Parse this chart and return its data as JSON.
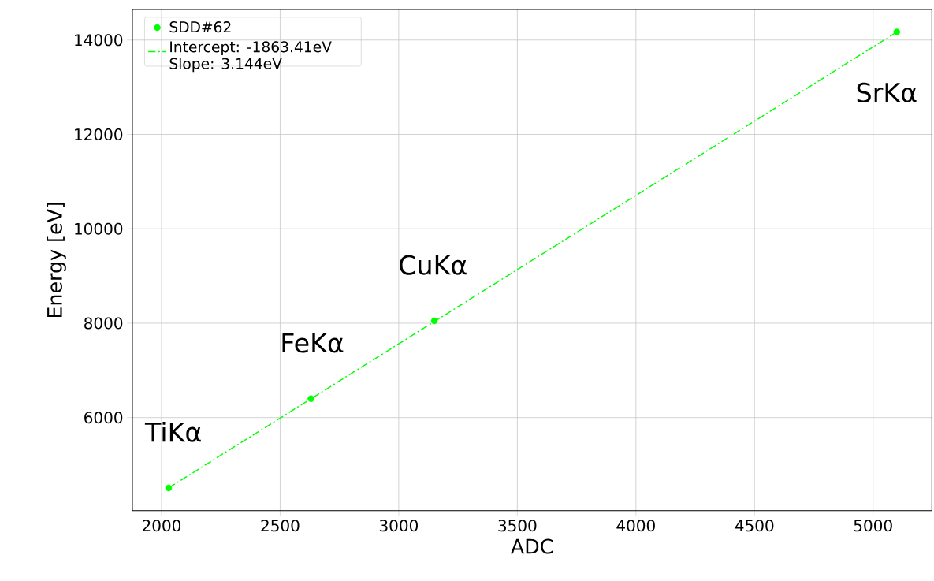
{
  "chart_data": {
    "type": "scatter",
    "xlabel": "ADC",
    "ylabel": "Energy [eV]",
    "x": [
      2030,
      2630,
      3150,
      5100
    ],
    "series": [
      {
        "name": "SDD#62",
        "color": "#00ff00",
        "marker": "circle",
        "values": [
          4510,
          6400,
          8050,
          14170
        ]
      },
      {
        "name": "Intercept: -1863.41eV Slope: 3.144eV",
        "type": "line",
        "color": "#00ff00",
        "line_style": "dashdot",
        "marker": "none",
        "x": [
          2030,
          5100
        ],
        "values": [
          4510,
          14170
        ]
      }
    ],
    "annotations": [
      {
        "text": "TiKα",
        "x": 2030,
        "y": 4510
      },
      {
        "text": "FeKα",
        "x": 2630,
        "y": 6400
      },
      {
        "text": "CuKα",
        "x": 3150,
        "y": 8050
      },
      {
        "text": "SrKα",
        "x": 5100,
        "y": 14170
      }
    ],
    "xlim": [
      1877,
      5248
    ],
    "ylim": [
      4027,
      14648
    ],
    "xticks": [
      2000,
      2500,
      3000,
      3500,
      4000,
      4500,
      5000
    ],
    "yticks": [
      6000,
      8000,
      10000,
      12000,
      14000
    ],
    "grid": true,
    "legend": "top left"
  }
}
